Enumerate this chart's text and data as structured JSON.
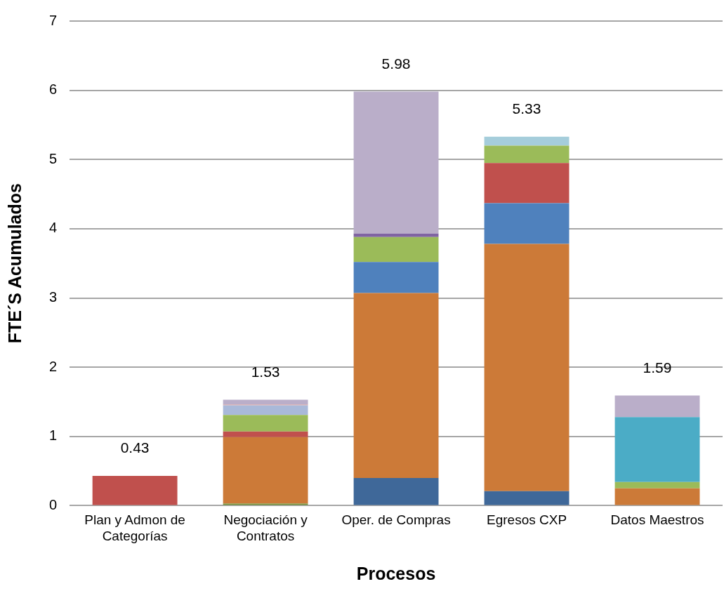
{
  "chart_data": {
    "type": "bar",
    "stacked": true,
    "xlabel": "Procesos",
    "ylabel": "FTE´S Acumulados",
    "categories": [
      "Plan y Admon de Categorías",
      "Negociación y Contratos",
      "Oper. de Compras",
      "Egresos CXP",
      "Datos Maestros"
    ],
    "series": [
      {
        "color": "#3f6899",
        "values": [
          null,
          null,
          0.4,
          0.21,
          null
        ]
      },
      {
        "color": "#77933c",
        "values": [
          null,
          0.03,
          null,
          null,
          null
        ]
      },
      {
        "color": "#cc7a38",
        "values": [
          null,
          0.96,
          2.67,
          3.57,
          0.25
        ]
      },
      {
        "color": "#4f81bd",
        "values": [
          null,
          null,
          0.45,
          0.59,
          null
        ]
      },
      {
        "color": "#c0504d",
        "values": [
          0.43,
          0.08,
          null,
          0.58,
          null
        ]
      },
      {
        "color": "#9bbb59",
        "values": [
          null,
          0.24,
          0.36,
          0.25,
          0.09
        ]
      },
      {
        "color": "#8064a2",
        "values": [
          null,
          null,
          0.05,
          null,
          null
        ]
      },
      {
        "color": "#a9b9d9",
        "values": [
          null,
          0.14,
          null,
          null,
          null
        ]
      },
      {
        "color": "#d99694",
        "values": [
          null,
          0.01,
          null,
          null,
          null
        ]
      },
      {
        "color": "#4bacc6",
        "values": [
          null,
          null,
          null,
          null,
          0.94
        ]
      },
      {
        "color": "#a5cddb",
        "values": [
          null,
          null,
          null,
          0.13,
          null
        ]
      },
      {
        "color": "#baaec9",
        "values": [
          null,
          0.07,
          2.05,
          null,
          0.31
        ]
      }
    ],
    "totals": [
      "0.43",
      "1.53",
      "5.98",
      "5.33",
      "1.59"
    ],
    "ylim": [
      0,
      7
    ],
    "yticks": [
      0,
      1,
      2,
      3,
      4,
      5,
      6,
      7
    ],
    "grid": "y",
    "legend": false
  }
}
